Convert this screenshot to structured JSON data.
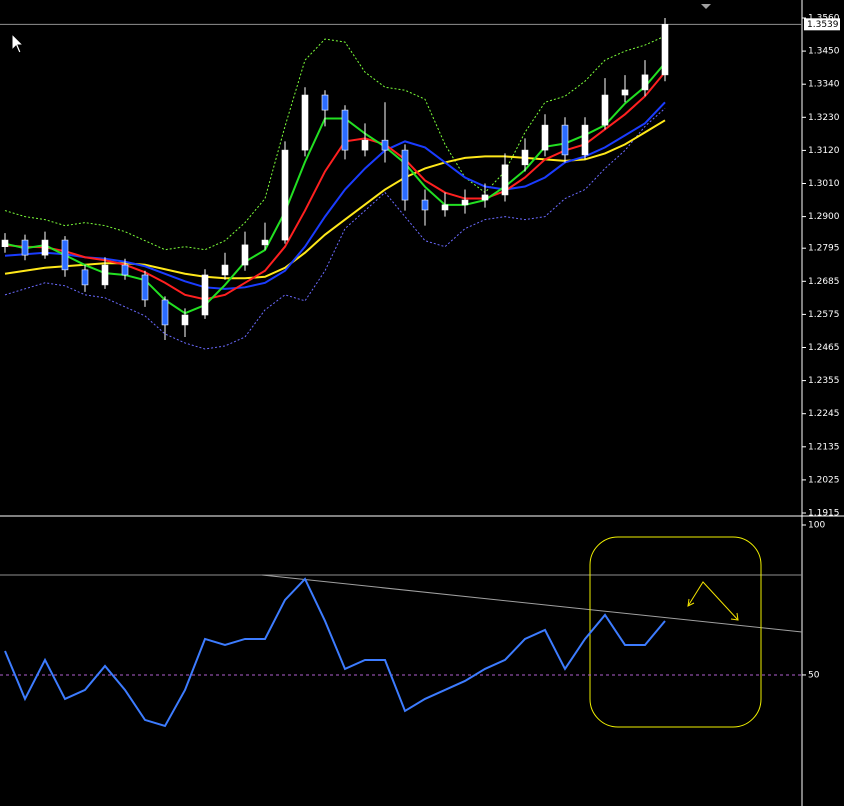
{
  "chart_data": [
    {
      "type": "candlestick",
      "up_color": "#ffffff",
      "down_color": "#2b6cff",
      "wick_color": "#ffffff",
      "open": [
        1.28,
        1.2822,
        1.2772,
        1.2822,
        1.2723,
        1.2673,
        1.2739,
        1.2706,
        1.2623,
        1.254,
        1.2573,
        1.2706,
        1.2739,
        1.2806,
        1.2822,
        1.3121,
        1.3304,
        1.3254,
        1.3121,
        1.3154,
        1.3121,
        1.2955,
        1.2922,
        1.2939,
        1.2955,
        1.2972,
        1.3072,
        1.3121,
        1.3204,
        1.3105,
        1.3204,
        1.3304,
        1.3321,
        1.3371
      ],
      "high": [
        1.2845,
        1.284,
        1.285,
        1.2835,
        1.274,
        1.2765,
        1.276,
        1.272,
        1.2635,
        1.2595,
        1.2725,
        1.278,
        1.285,
        1.288,
        1.315,
        1.333,
        1.332,
        1.327,
        1.321,
        1.328,
        1.314,
        1.299,
        1.298,
        1.299,
        1.301,
        1.311,
        1.316,
        1.324,
        1.323,
        1.323,
        1.336,
        1.337,
        1.342,
        1.356
      ],
      "low": [
        1.278,
        1.2755,
        1.276,
        1.27,
        1.265,
        1.266,
        1.269,
        1.26,
        1.249,
        1.25,
        1.256,
        1.269,
        1.272,
        1.279,
        1.281,
        1.31,
        1.32,
        1.309,
        1.31,
        1.308,
        1.292,
        1.287,
        1.29,
        1.291,
        1.293,
        1.295,
        1.305,
        1.31,
        1.308,
        1.309,
        1.319,
        1.328,
        1.33,
        1.335
      ],
      "close": [
        1.2822,
        1.2772,
        1.2822,
        1.2723,
        1.2673,
        1.2739,
        1.2706,
        1.2623,
        1.254,
        1.2573,
        1.2706,
        1.2739,
        1.2806,
        1.2822,
        1.3121,
        1.3304,
        1.3254,
        1.3121,
        1.3154,
        1.3121,
        1.2955,
        1.2922,
        1.2939,
        1.2955,
        1.2972,
        1.3072,
        1.3121,
        1.3204,
        1.3105,
        1.3204,
        1.3304,
        1.3321,
        1.3371,
        1.3539
      ],
      "series": [
        {
          "color": "#7cff3a",
          "style": "dashed",
          "values": [
            1.292,
            1.29,
            1.289,
            1.287,
            1.288,
            1.287,
            1.285,
            1.282,
            1.279,
            1.28,
            1.279,
            1.282,
            1.288,
            1.296,
            1.32,
            1.342,
            1.349,
            1.348,
            1.338,
            1.333,
            1.332,
            1.329,
            1.314,
            1.303,
            1.298,
            1.305,
            1.318,
            1.328,
            1.33,
            1.335,
            1.342,
            1.345,
            1.347,
            1.35
          ]
        },
        {
          "color": "#6a6aff",
          "style": "dashed",
          "values": [
            1.264,
            1.266,
            1.268,
            1.267,
            1.264,
            1.263,
            1.26,
            1.257,
            1.251,
            1.248,
            1.246,
            1.247,
            1.25,
            1.259,
            1.264,
            1.262,
            1.272,
            1.286,
            1.292,
            1.298,
            1.29,
            1.282,
            1.28,
            1.286,
            1.289,
            1.29,
            1.289,
            1.29,
            1.296,
            1.299,
            1.306,
            1.312,
            1.32,
            1.326
          ]
        },
        {
          "color": "#ffe81a",
          "style": "solid",
          "values": [
            1.271,
            1.272,
            1.273,
            1.2735,
            1.274,
            1.2745,
            1.2745,
            1.274,
            1.2725,
            1.271,
            1.27,
            1.2695,
            1.2695,
            1.27,
            1.273,
            1.278,
            1.284,
            1.289,
            1.294,
            1.299,
            1.303,
            1.306,
            1.308,
            1.3095,
            1.31,
            1.31,
            1.3095,
            1.309,
            1.3085,
            1.309,
            1.311,
            1.314,
            1.318,
            1.322
          ]
        },
        {
          "color": "#1a3cff",
          "style": "solid",
          "values": [
            1.277,
            1.2775,
            1.278,
            1.2775,
            1.2765,
            1.276,
            1.275,
            1.2735,
            1.271,
            1.2685,
            1.2665,
            1.266,
            1.2665,
            1.268,
            1.272,
            1.28,
            1.29,
            1.299,
            1.306,
            1.312,
            1.315,
            1.313,
            1.308,
            1.303,
            1.3,
            1.299,
            1.3,
            1.303,
            1.308,
            1.31,
            1.313,
            1.317,
            1.321,
            1.328
          ]
        },
        {
          "color": "#ff2020",
          "style": "solid",
          "values": [
            1.2805,
            1.28,
            1.2798,
            1.2785,
            1.2765,
            1.2755,
            1.274,
            1.2715,
            1.268,
            1.264,
            1.2625,
            1.264,
            1.268,
            1.272,
            1.28,
            1.292,
            1.305,
            1.315,
            1.316,
            1.314,
            1.309,
            1.302,
            1.298,
            1.296,
            1.296,
            1.2985,
            1.303,
            1.309,
            1.312,
            1.314,
            1.319,
            1.324,
            1.33,
            1.338
          ]
        },
        {
          "color": "#22e022",
          "style": "solid",
          "values": [
            1.281,
            1.2795,
            1.2805,
            1.2772,
            1.2739,
            1.2712,
            1.2706,
            1.2689,
            1.2623,
            1.2579,
            1.2606,
            1.2673,
            1.275,
            1.2789,
            1.2916,
            1.3082,
            1.3226,
            1.3226,
            1.3176,
            1.3132,
            1.3077,
            1.2999,
            1.2939,
            1.2939,
            1.2955,
            1.3,
            1.3055,
            1.3132,
            1.3143,
            1.3171,
            1.3204,
            1.3276,
            1.3332,
            1.341
          ]
        }
      ],
      "current_price": 1.3539,
      "ylim": [
        1.1915,
        1.356
      ],
      "yticks": [
        {
          "value": 1.356,
          "label": "1.3560"
        },
        {
          "value": 1.345,
          "label": "1.3450"
        },
        {
          "value": 1.334,
          "label": "1.3340"
        },
        {
          "value": 1.323,
          "label": "1.3230"
        },
        {
          "value": 1.312,
          "label": "1.3120"
        },
        {
          "value": 1.301,
          "label": "1.3010"
        },
        {
          "value": 1.29,
          "label": "1.2900"
        },
        1.2795,
        1.2685,
        1.2575,
        1.2465,
        1.2355,
        1.2245,
        1.2135,
        1.2025,
        1.1915
      ]
    },
    {
      "type": "line",
      "series": [
        {
          "color": "#3d7cff",
          "values": [
            58,
            42,
            55,
            42,
            45,
            53,
            45,
            35,
            33,
            45,
            62,
            60,
            62,
            62,
            75,
            82,
            68,
            52,
            55,
            55,
            38,
            42,
            45,
            48,
            52,
            55,
            62,
            65,
            52,
            62,
            70,
            60,
            60,
            68
          ]
        }
      ],
      "levels": [
        50
      ],
      "level_color": "#b060d0",
      "ylim": [
        6.3,
        100
      ],
      "yticks": [
        100,
        50
      ]
    }
  ]
}
